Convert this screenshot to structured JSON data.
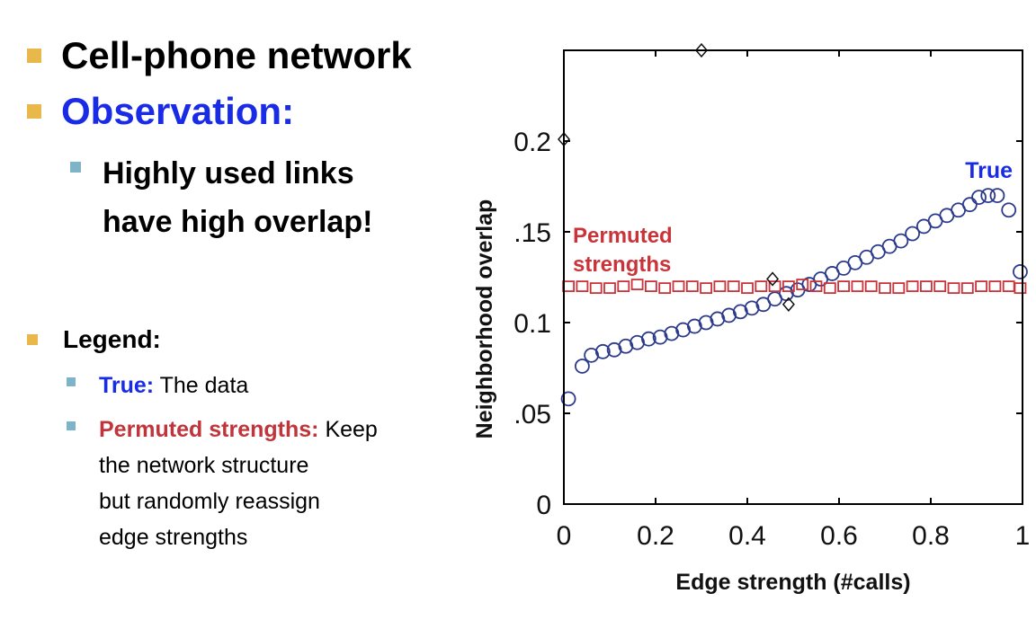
{
  "slide": {
    "bullets": [
      {
        "text": "Cell-phone network"
      },
      {
        "text": "Observation:"
      }
    ],
    "sub_bullet": {
      "line1": "Highly used links",
      "line2": "have high overlap!"
    },
    "legend": {
      "heading": "Legend:",
      "true_label": "True:",
      "true_desc": "The data",
      "perm_label": "Permuted strengths:",
      "perm_desc_1": "Keep",
      "perm_desc_2": "the network structure",
      "perm_desc_3": "but randomly reassign",
      "perm_desc_4": "edge strengths"
    }
  },
  "colors": {
    "bullet_gold": "#e8b84a",
    "bullet_teal": "#7fb4c8",
    "true_blue": "#1a2be6",
    "series_blue": "#2c3a8c",
    "perm_red": "#c9343b"
  },
  "chart_data": {
    "type": "scatter",
    "xlabel": "Edge strength (#calls)",
    "ylabel": "Neighborhood  overlap",
    "xlim": [
      0,
      1
    ],
    "ylim": [
      0,
      0.25
    ],
    "x_ticks": [
      "0",
      "0.2",
      "0.4",
      "0.6",
      "0.8",
      "1"
    ],
    "x_tick_values": [
      0,
      0.2,
      0.4,
      0.6,
      0.8,
      1
    ],
    "y_ticks": [
      "0",
      ".05",
      "0.1",
      ".15",
      "0.2"
    ],
    "y_tick_values": [
      0,
      0.05,
      0.1,
      0.15,
      0.2
    ],
    "grid": false,
    "series": [
      {
        "name": "True",
        "marker": "circle",
        "color": "#2c3a8c",
        "x": [
          0.01,
          0.04,
          0.06,
          0.085,
          0.11,
          0.135,
          0.16,
          0.185,
          0.21,
          0.235,
          0.26,
          0.285,
          0.31,
          0.335,
          0.36,
          0.385,
          0.41,
          0.435,
          0.46,
          0.485,
          0.51,
          0.535,
          0.56,
          0.585,
          0.61,
          0.635,
          0.66,
          0.685,
          0.71,
          0.735,
          0.76,
          0.785,
          0.81,
          0.835,
          0.86,
          0.885,
          0.905,
          0.925,
          0.945,
          0.97,
          0.995
        ],
        "y": [
          0.058,
          0.076,
          0.082,
          0.084,
          0.085,
          0.087,
          0.089,
          0.091,
          0.092,
          0.094,
          0.096,
          0.098,
          0.1,
          0.102,
          0.104,
          0.106,
          0.108,
          0.11,
          0.113,
          0.116,
          0.118,
          0.121,
          0.124,
          0.127,
          0.13,
          0.133,
          0.136,
          0.139,
          0.142,
          0.145,
          0.149,
          0.153,
          0.156,
          0.159,
          0.162,
          0.165,
          0.169,
          0.17,
          0.17,
          0.162,
          0.128
        ]
      },
      {
        "name": "Permuted strengths",
        "marker": "square",
        "color": "#c9343b",
        "x": [
          0.01,
          0.04,
          0.07,
          0.1,
          0.13,
          0.16,
          0.19,
          0.22,
          0.25,
          0.28,
          0.31,
          0.34,
          0.37,
          0.4,
          0.43,
          0.46,
          0.49,
          0.52,
          0.55,
          0.58,
          0.61,
          0.64,
          0.67,
          0.7,
          0.73,
          0.76,
          0.79,
          0.82,
          0.85,
          0.88,
          0.91,
          0.94,
          0.97,
          0.995
        ],
        "y": [
          0.12,
          0.12,
          0.119,
          0.119,
          0.12,
          0.121,
          0.12,
          0.119,
          0.12,
          0.12,
          0.119,
          0.12,
          0.12,
          0.119,
          0.12,
          0.12,
          0.12,
          0.121,
          0.12,
          0.119,
          0.12,
          0.12,
          0.12,
          0.119,
          0.119,
          0.12,
          0.12,
          0.12,
          0.119,
          0.119,
          0.12,
          0.12,
          0.12,
          0.119
        ]
      },
      {
        "marker": "diamond",
        "color": "#111111",
        "x": [
          0.0,
          0.3,
          0.455,
          0.49
        ],
        "y": [
          0.201,
          0.25,
          0.124,
          0.11
        ]
      }
    ],
    "annotations": [
      {
        "text": "True",
        "color": "#1a2be6"
      },
      {
        "text": "Permuted",
        "color": "#c9343b"
      },
      {
        "text": "strengths",
        "color": "#c9343b"
      }
    ]
  }
}
